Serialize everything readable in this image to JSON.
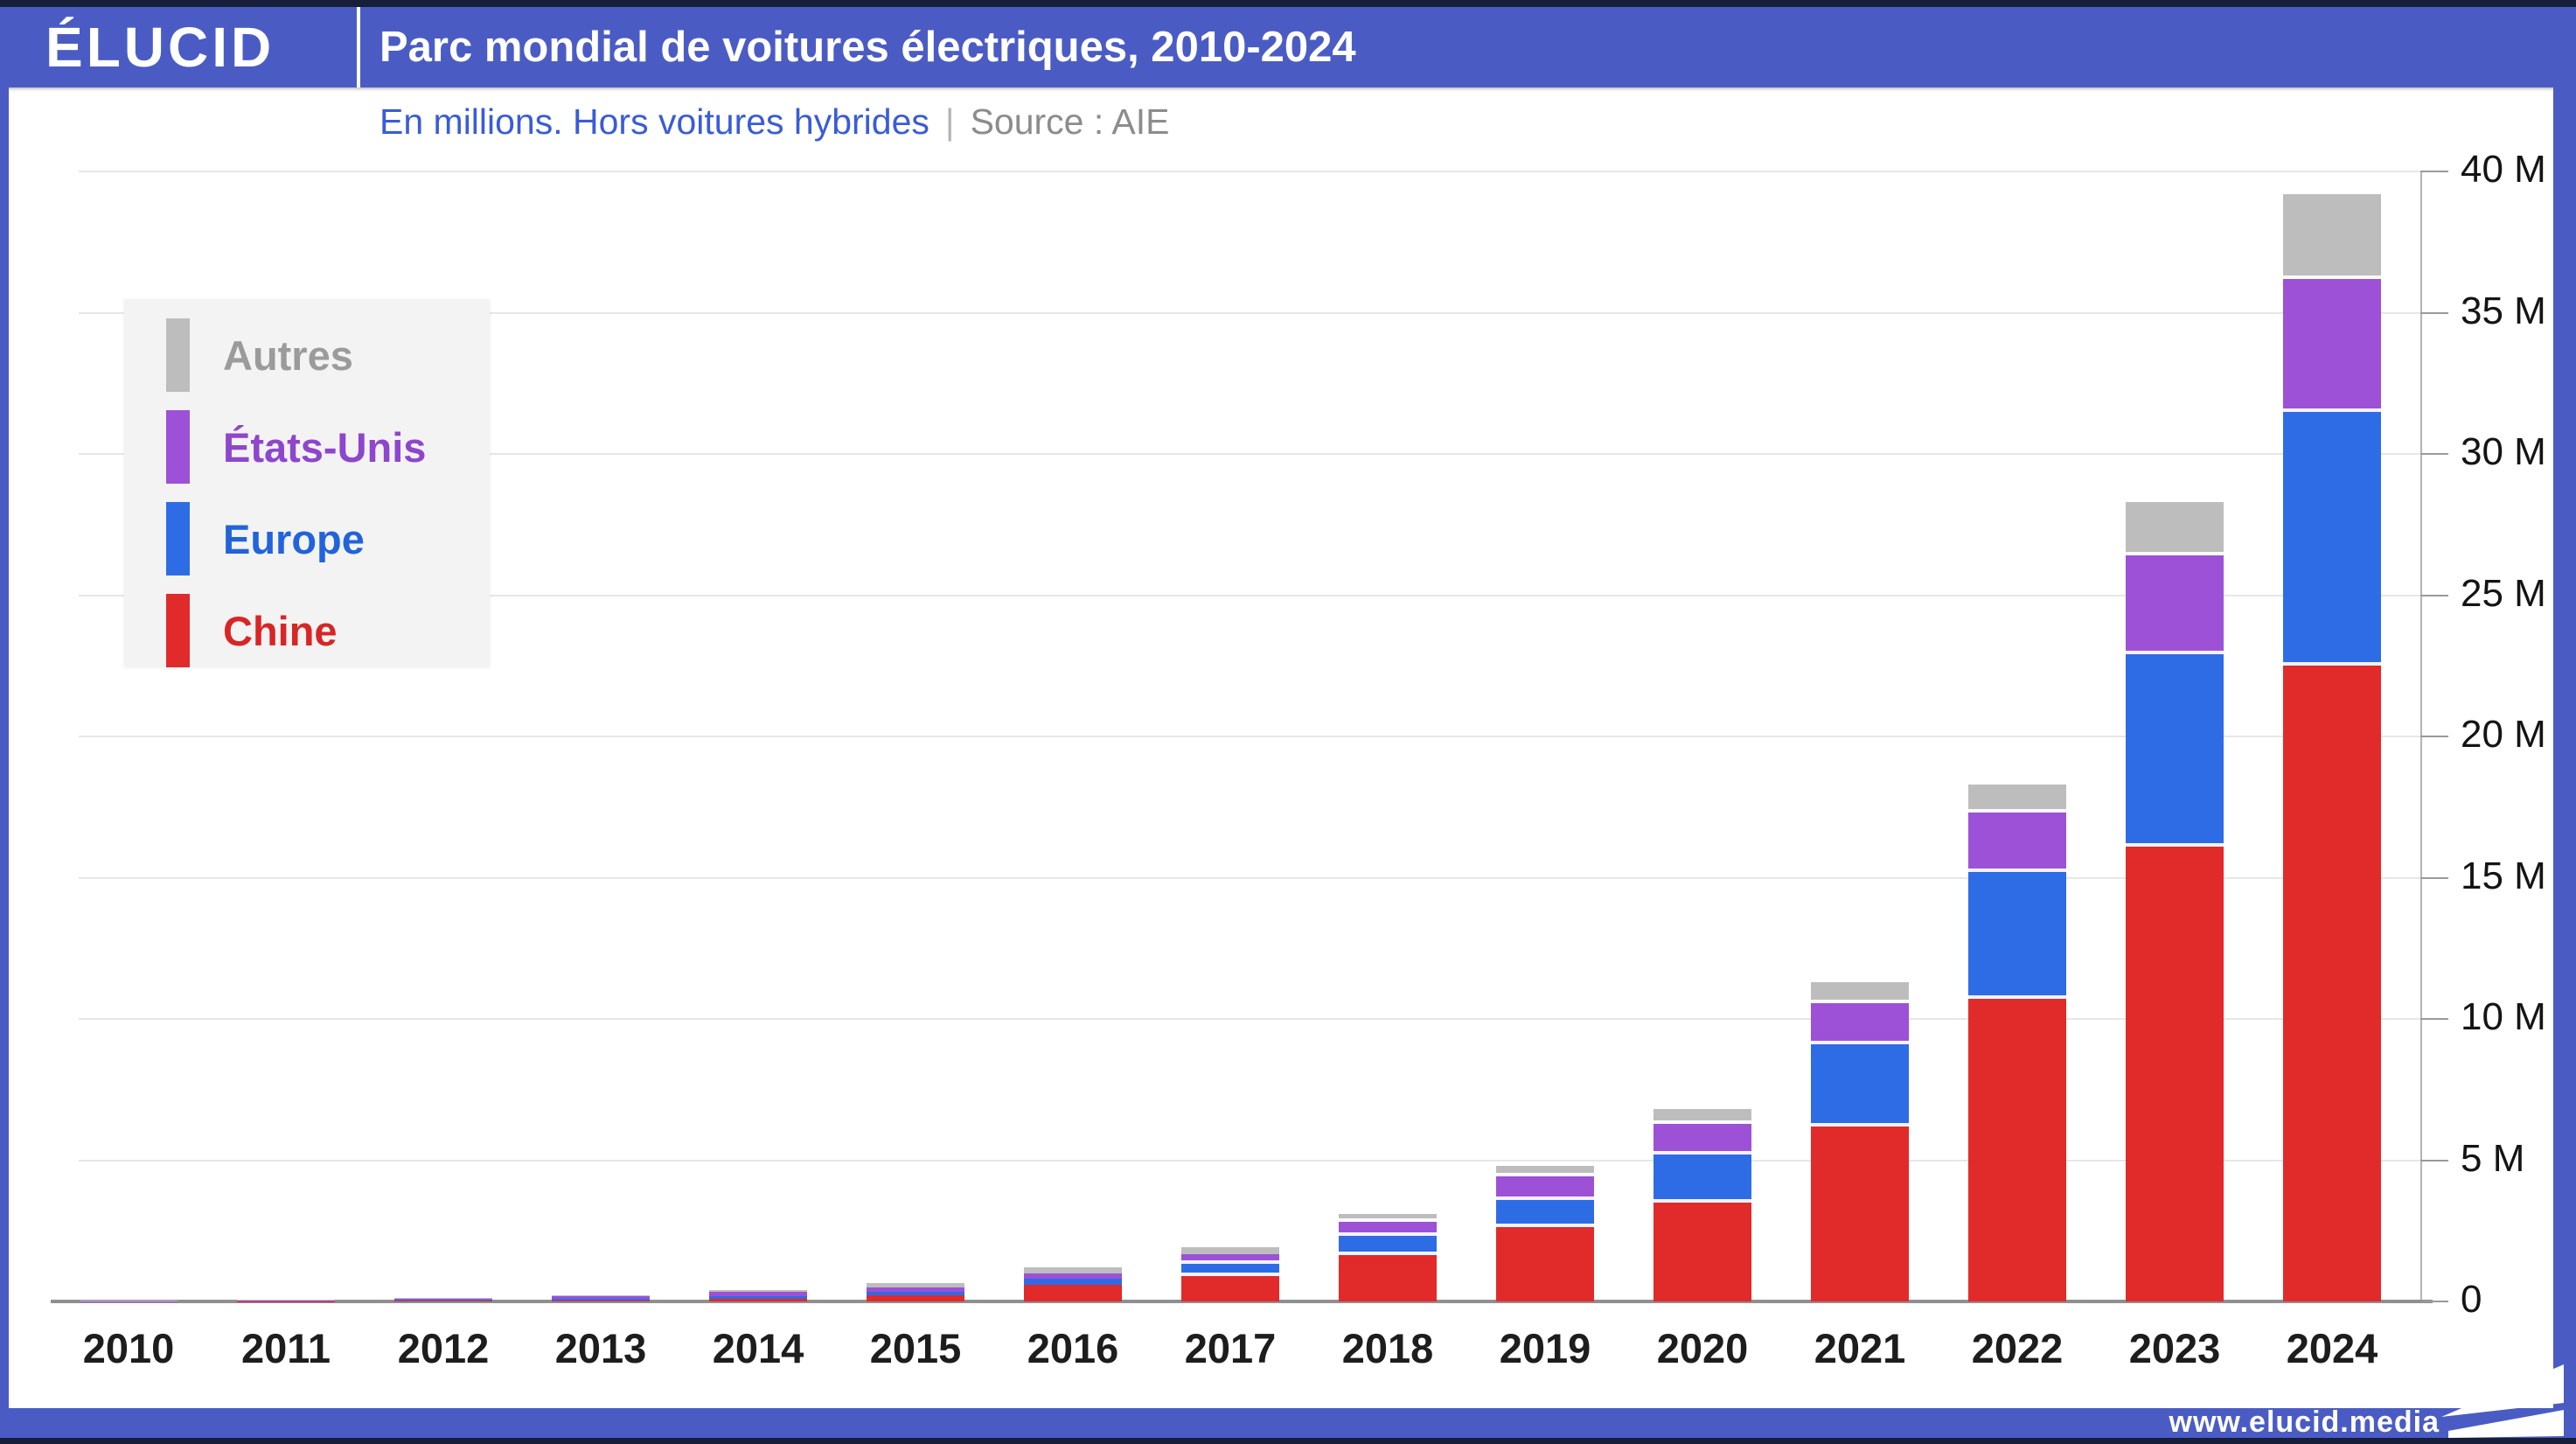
{
  "header": {
    "logo": "ÉLUCID",
    "title": "Parc mondial de voitures électriques, 2010-2024"
  },
  "subtitle": {
    "text": "En millions. Hors voitures hybrides",
    "separator": "|",
    "source": "Source : AIE"
  },
  "legend": {
    "items": [
      {
        "label": "Autres",
        "swatch_color": "#bdbdbd",
        "text_color": "#9b9b9b"
      },
      {
        "label": "États-Unis",
        "swatch_color": "#9c51d6",
        "text_color": "#8d46cc"
      },
      {
        "label": "Europe",
        "swatch_color": "#2e6ce5",
        "text_color": "#2163db"
      },
      {
        "label": "Chine",
        "swatch_color": "#e12a2a",
        "text_color": "#d92525"
      }
    ]
  },
  "footer": {
    "url": "www.elucid.media"
  },
  "colors": {
    "frame_blue": "#4a5cc4",
    "dark_navy": "#161e3a",
    "chine_red": "#e12a2a",
    "europe_blue": "#2e6ce5",
    "usa_purple": "#9c51d6",
    "autres_gray": "#bdbdbd",
    "legend_bg": "#f3f3f3",
    "gridline": "#e7e7e7",
    "baseline": "#8f8f8f"
  },
  "chart_data": {
    "type": "bar",
    "stacked": true,
    "title": "Parc mondial de voitures électriques, 2010-2024",
    "subtitle": "En millions. Hors voitures hybrides",
    "source": "AIE",
    "unit": "millions de voitures électriques (hors hybrides)",
    "categories": [
      "2010",
      "2011",
      "2012",
      "2013",
      "2014",
      "2015",
      "2016",
      "2017",
      "2018",
      "2019",
      "2020",
      "2021",
      "2022",
      "2023",
      "2024"
    ],
    "series": [
      {
        "name": "Chine",
        "color": "#e12a2a",
        "values": [
          0.005,
          0.01,
          0.02,
          0.03,
          0.08,
          0.22,
          0.6,
          0.9,
          1.63,
          2.64,
          3.5,
          6.2,
          10.7,
          16.1,
          22.5
        ]
      },
      {
        "name": "Europe",
        "color": "#2e6ce5",
        "values": [
          0.005,
          0.015,
          0.03,
          0.06,
          0.1,
          0.12,
          0.2,
          0.42,
          0.68,
          0.96,
          1.7,
          2.9,
          4.5,
          6.8,
          9.0
        ]
      },
      {
        "name": "États-Unis",
        "color": "#9c51d6",
        "values": [
          0.005,
          0.02,
          0.04,
          0.1,
          0.16,
          0.16,
          0.2,
          0.34,
          0.5,
          0.84,
          1.1,
          1.45,
          2.1,
          3.5,
          4.7
        ]
      },
      {
        "name": "Autres",
        "color": "#bdbdbd",
        "values": [
          0.005,
          0.015,
          0.03,
          0.04,
          0.06,
          0.15,
          0.2,
          0.26,
          0.3,
          0.36,
          0.5,
          0.75,
          1.0,
          1.9,
          3.0
        ]
      }
    ],
    "totals": [
      0.02,
      0.06,
      0.12,
      0.23,
      0.4,
      0.65,
      1.2,
      1.92,
      3.11,
      4.8,
      6.8,
      11.3,
      18.3,
      28.3,
      39.2
    ],
    "ylim": [
      0,
      40
    ],
    "y_ticks": [
      {
        "value": 40,
        "label": "40 M"
      },
      {
        "value": 35,
        "label": "35 M"
      },
      {
        "value": 30,
        "label": "30 M"
      },
      {
        "value": 25,
        "label": "25 M"
      },
      {
        "value": 20,
        "label": "20 M"
      },
      {
        "value": 15,
        "label": "15 M"
      },
      {
        "value": 10,
        "label": "10 M"
      },
      {
        "value": 5,
        "label": "5 M"
      },
      {
        "value": 0,
        "label": "0"
      }
    ],
    "grid": true,
    "legend_position": "upper-left",
    "legend_order_top_to_bottom": [
      "Autres",
      "États-Unis",
      "Europe",
      "Chine"
    ],
    "axis_side": "right"
  }
}
